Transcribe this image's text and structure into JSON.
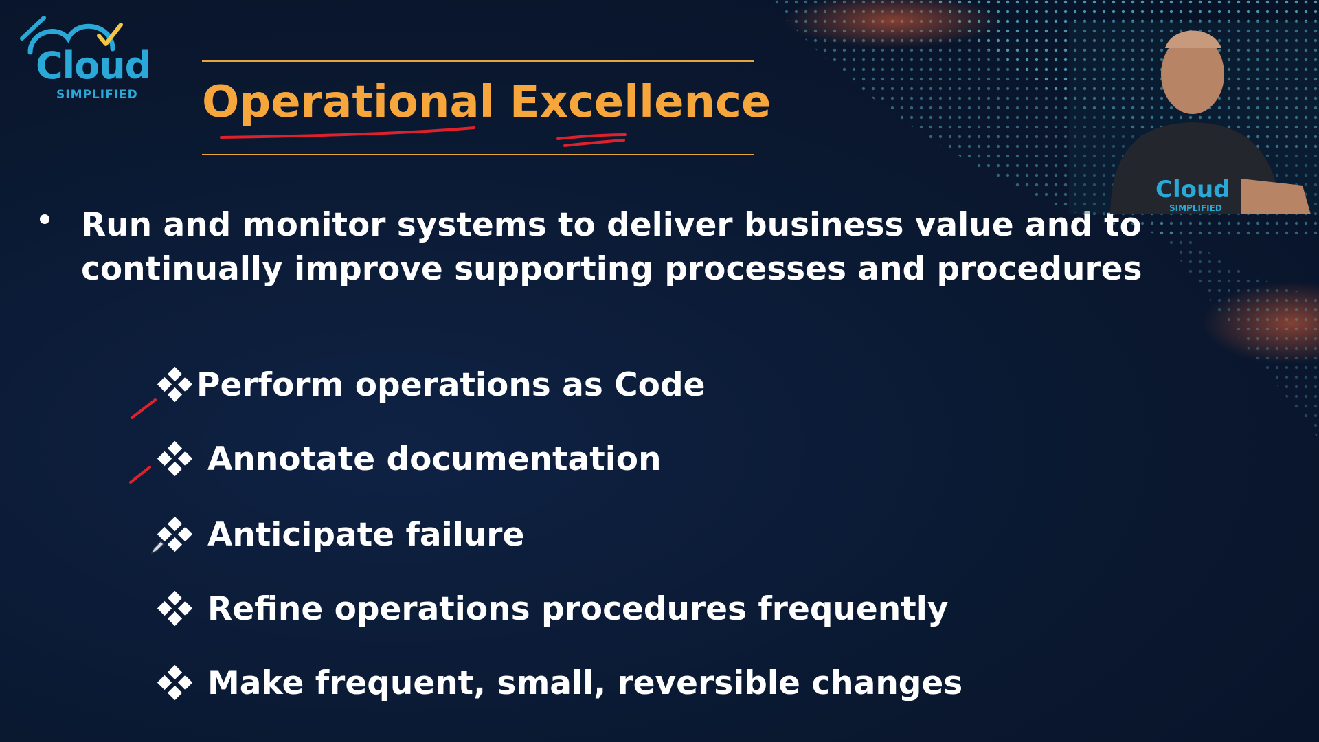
{
  "logo": {
    "brand": "Cloud",
    "tagline": "SIMPLIFIED",
    "icon": "cloud-icon"
  },
  "slide": {
    "title": "Operational Excellence",
    "main_bullet": "Run and monitor systems to deliver business value and to continually improve supporting processes and procedures",
    "sub_items": [
      {
        "label": "Perform operations as Code"
      },
      {
        "label": "Annotate documentation"
      },
      {
        "label": "Anticipate failure"
      },
      {
        "label": "Refine operations procedures frequently"
      },
      {
        "label": "Make frequent, small, reversible changes"
      }
    ]
  },
  "presenter": {
    "shirt_logo": "Cloud",
    "shirt_sub": "SIMPLIFIED"
  },
  "colors": {
    "background": "#0b1a33",
    "title": "#f7a63c",
    "rule": "#e8a53a",
    "ink": "#e0202a",
    "logo": "#2aa9d8",
    "text": "#ffffff"
  }
}
